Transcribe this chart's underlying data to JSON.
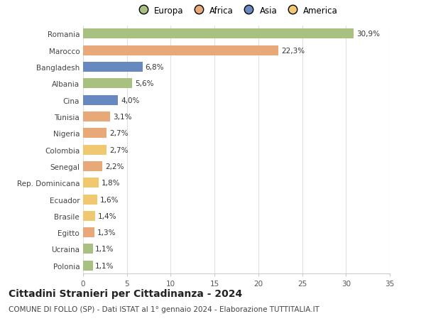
{
  "countries": [
    "Romania",
    "Marocco",
    "Bangladesh",
    "Albania",
    "Cina",
    "Tunisia",
    "Nigeria",
    "Colombia",
    "Senegal",
    "Rep. Dominicana",
    "Ecuador",
    "Brasile",
    "Egitto",
    "Ucraina",
    "Polonia"
  ],
  "values": [
    30.9,
    22.3,
    6.8,
    5.6,
    4.0,
    3.1,
    2.7,
    2.7,
    2.2,
    1.8,
    1.6,
    1.4,
    1.3,
    1.1,
    1.1
  ],
  "labels": [
    "30,9%",
    "22,3%",
    "6,8%",
    "5,6%",
    "4,0%",
    "3,1%",
    "2,7%",
    "2,7%",
    "2,2%",
    "1,8%",
    "1,6%",
    "1,4%",
    "1,3%",
    "1,1%",
    "1,1%"
  ],
  "continents": [
    "Europa",
    "Africa",
    "Asia",
    "Europa",
    "Asia",
    "Africa",
    "Africa",
    "America",
    "Africa",
    "America",
    "America",
    "America",
    "Africa",
    "Europa",
    "Europa"
  ],
  "continent_colors": {
    "Europa": "#a8c080",
    "Africa": "#e8a878",
    "Asia": "#6888c0",
    "America": "#f0c870"
  },
  "legend_order": [
    "Europa",
    "Africa",
    "Asia",
    "America"
  ],
  "title": "Cittadini Stranieri per Cittadinanza - 2024",
  "subtitle": "COMUNE DI FOLLO (SP) - Dati ISTAT al 1° gennaio 2024 - Elaborazione TUTTITALIA.IT",
  "xlim": [
    0,
    35
  ],
  "xticks": [
    0,
    5,
    10,
    15,
    20,
    25,
    30,
    35
  ],
  "background_color": "#ffffff",
  "grid_color": "#e0e0e0",
  "bar_height": 0.6,
  "label_fontsize": 7.5,
  "tick_fontsize": 7.5,
  "title_fontsize": 10,
  "subtitle_fontsize": 7.5,
  "legend_fontsize": 8.5
}
